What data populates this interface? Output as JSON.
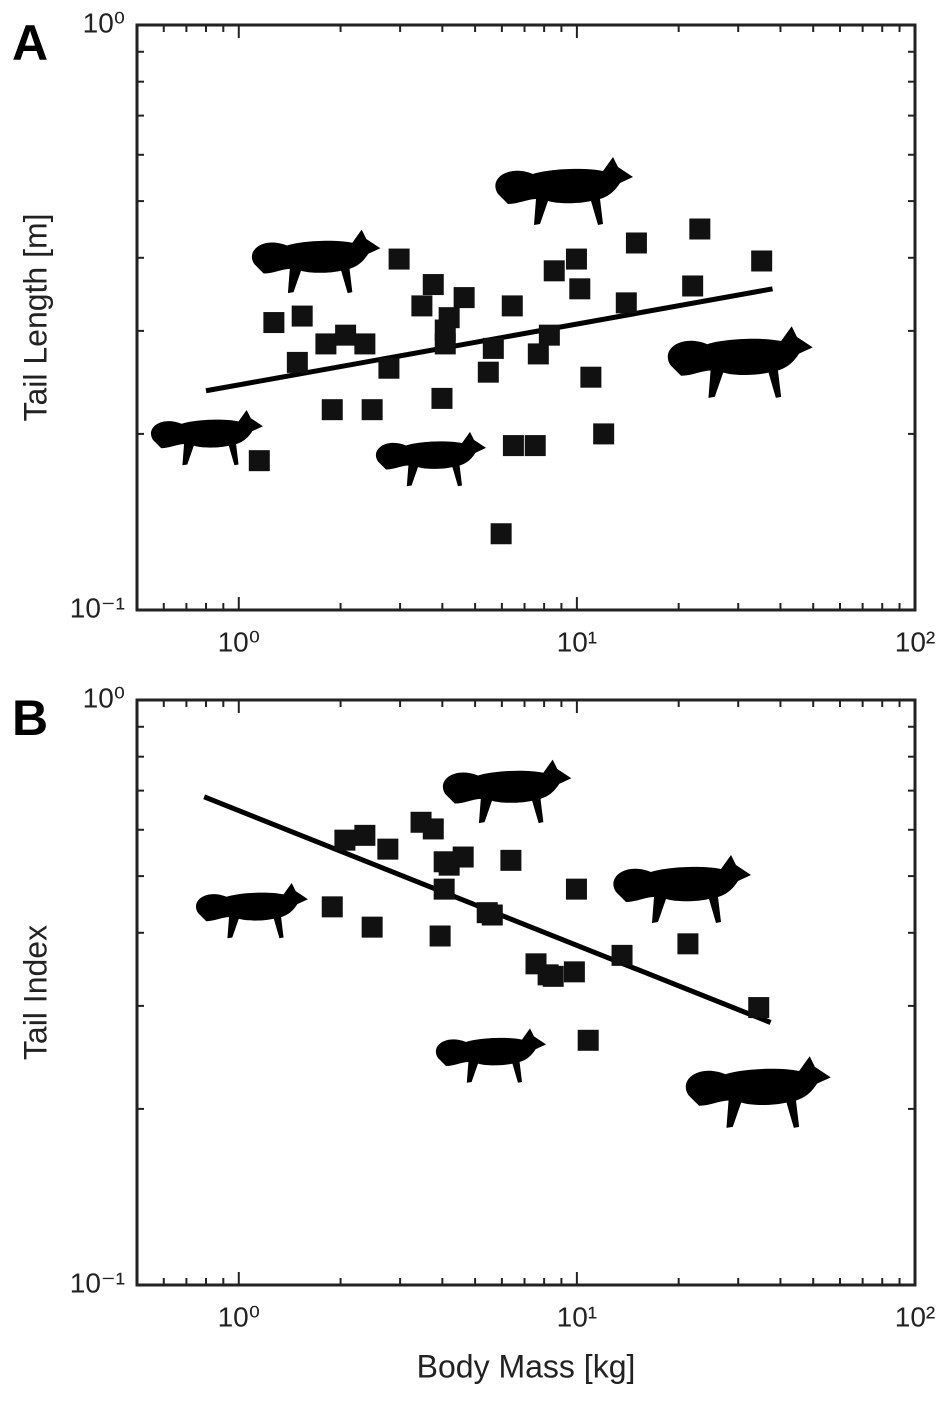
{
  "chart_data": [
    {
      "type": "scatter",
      "panel": "A",
      "y_label": "Tail Length [m]",
      "xscale": "log",
      "yscale": "log",
      "color": "#111111",
      "xlim": [
        0.5,
        100
      ],
      "ylim": [
        0.1,
        1
      ],
      "xticks": [
        {
          "value": 1,
          "label": "10⁰"
        },
        {
          "value": 10,
          "label": "10¹"
        },
        {
          "value": 100,
          "label": "10²"
        }
      ],
      "yticks": [
        {
          "value": 0.1,
          "label": "10⁻¹"
        },
        {
          "value": 1,
          "label": "10⁰"
        }
      ],
      "xminorticks": [
        0.5,
        0.6,
        0.7,
        0.8,
        0.9,
        2,
        3,
        4,
        5,
        6,
        7,
        8,
        9,
        20,
        30,
        40,
        50,
        60,
        70,
        80,
        90
      ],
      "yminorticks": [
        0.2,
        0.3,
        0.4,
        0.5,
        0.6,
        0.7,
        0.8,
        0.9
      ],
      "x": [
        1.15,
        1.27,
        1.54,
        1.49,
        1.81,
        2.07,
        2.36,
        1.89,
        2.48,
        2.78,
        2.98,
        3.48,
        3.76,
        4.19,
        4.08,
        4.08,
        3.99,
        4.64,
        5.47,
        5.66,
        5.97,
        6.44,
        6.49,
        7.53,
        7.69,
        8.29,
        8.57,
        9.97,
        10.2,
        11.0,
        12.0,
        14.0,
        15.0,
        22.0,
        23.1,
        35.2
      ],
      "values": [
        0.18,
        0.31,
        0.318,
        0.265,
        0.285,
        0.295,
        0.285,
        0.22,
        0.22,
        0.259,
        0.398,
        0.331,
        0.36,
        0.316,
        0.301,
        0.285,
        0.23,
        0.342,
        0.255,
        0.28,
        0.135,
        0.331,
        0.191,
        0.191,
        0.274,
        0.295,
        0.38,
        0.398,
        0.354,
        0.25,
        0.2,
        0.335,
        0.424,
        0.358,
        0.448,
        0.395
      ],
      "fit_line": {
        "x": [
          0.8,
          37.9
        ],
        "values": [
          0.237,
          0.354
        ]
      }
    },
    {
      "type": "scatter",
      "panel": "B",
      "y_label": "Tail Index",
      "x_label": "Body Mass [kg]",
      "xscale": "log",
      "yscale": "log",
      "color": "#111111",
      "xlim": [
        0.5,
        100
      ],
      "ylim": [
        0.1,
        1
      ],
      "xticks": [
        {
          "value": 1,
          "label": "10⁰"
        },
        {
          "value": 10,
          "label": "10¹"
        },
        {
          "value": 100,
          "label": "10²"
        }
      ],
      "yticks": [
        {
          "value": 0.1,
          "label": "10⁻¹"
        },
        {
          "value": 1,
          "label": "10⁰"
        }
      ],
      "xminorticks": [
        0.5,
        0.6,
        0.7,
        0.8,
        0.9,
        2,
        3,
        4,
        5,
        6,
        7,
        8,
        9,
        20,
        30,
        40,
        50,
        60,
        70,
        80,
        90
      ],
      "yminorticks": [
        0.2,
        0.3,
        0.4,
        0.5,
        0.6,
        0.7,
        0.8,
        0.9
      ],
      "x": [
        2.06,
        2.36,
        2.76,
        1.89,
        2.48,
        3.46,
        3.76,
        4.05,
        4.19,
        4.61,
        4.05,
        3.94,
        5.43,
        5.62,
        6.38,
        7.57,
        8.22,
        8.51,
        9.83,
        9.97,
        10.8,
        13.6,
        21.3,
        34.5
      ],
      "values": [
        0.576,
        0.587,
        0.556,
        0.443,
        0.409,
        0.618,
        0.602,
        0.529,
        0.522,
        0.539,
        0.475,
        0.395,
        0.433,
        0.429,
        0.532,
        0.354,
        0.339,
        0.337,
        0.343,
        0.475,
        0.262,
        0.366,
        0.383,
        0.298
      ],
      "fit_line": {
        "x": [
          0.79,
          37.4
        ],
        "values": [
          0.683,
          0.281
        ]
      }
    }
  ]
}
